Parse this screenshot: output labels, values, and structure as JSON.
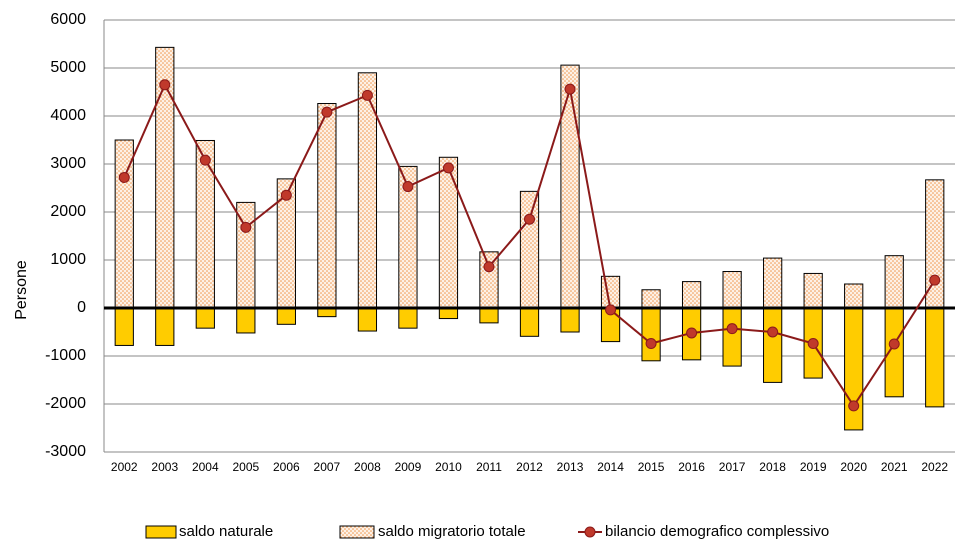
{
  "chart_data": {
    "type": "bar",
    "y_label": "Persone",
    "categories": [
      "2002",
      "2003",
      "2004",
      "2005",
      "2006",
      "2007",
      "2008",
      "2009",
      "2010",
      "2011",
      "2012",
      "2013",
      "2014",
      "2015",
      "2016",
      "2017",
      "2018",
      "2019",
      "2020",
      "2021",
      "2022"
    ],
    "series": [
      {
        "name": "saldo naturale",
        "type": "bar",
        "color": "#ffcc00",
        "values": [
          -780,
          -780,
          -420,
          -520,
          -340,
          -180,
          -480,
          -420,
          -220,
          -310,
          -590,
          -500,
          -700,
          -1100,
          -1080,
          -1210,
          -1550,
          -1460,
          -2540,
          -1850,
          -2060
        ]
      },
      {
        "name": "saldo migratorio totale",
        "type": "bar",
        "color": "#f0954a",
        "values": [
          3500,
          5430,
          3490,
          2200,
          2690,
          4260,
          4900,
          2950,
          3140,
          1170,
          2430,
          5060,
          660,
          380,
          550,
          760,
          1040,
          720,
          500,
          1090,
          2670
        ]
      },
      {
        "name": "bilancio demografico complessivo",
        "type": "line",
        "color": "#8b1a1a",
        "marker_color": "#c0392b",
        "values": [
          2720,
          4650,
          3080,
          1680,
          2350,
          4080,
          4430,
          2530,
          2920,
          860,
          1850,
          4560,
          -40,
          -740,
          -520,
          -430,
          -500,
          -740,
          -2040,
          -750,
          580
        ]
      }
    ],
    "ylim": [
      -3000,
      6000
    ],
    "yticks": [
      -3000,
      -2000,
      -1000,
      0,
      1000,
      2000,
      3000,
      4000,
      5000,
      6000
    ],
    "grid": true,
    "legend": "bottom"
  }
}
